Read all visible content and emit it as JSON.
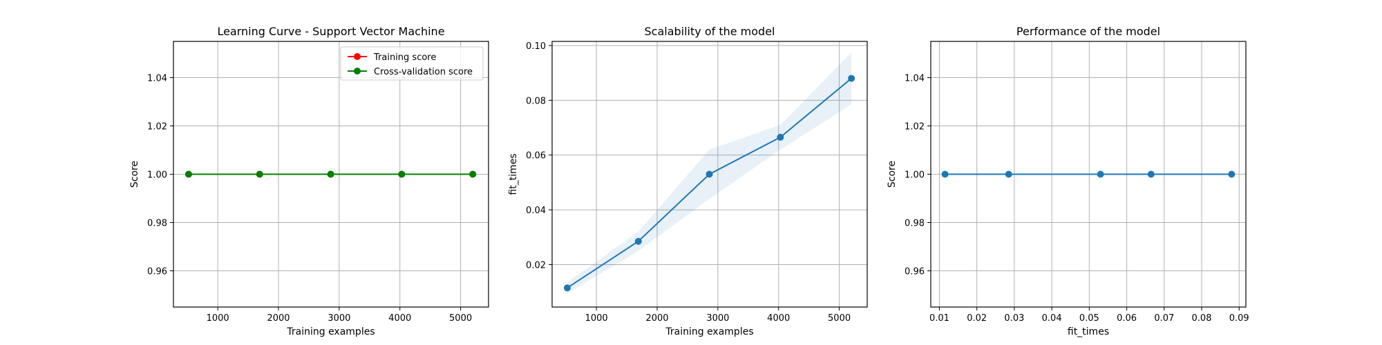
{
  "chart_data": [
    {
      "type": "line",
      "title": "Learning Curve - Support Vector Machine",
      "xlabel": "Training examples",
      "ylabel": "Score",
      "xlim": [
        270,
        5460
      ],
      "ylim": [
        0.945,
        1.055
      ],
      "xticks": [
        1000,
        2000,
        3000,
        4000,
        5000
      ],
      "yticks": [
        0.96,
        0.98,
        1.0,
        1.02,
        1.04
      ],
      "xtick_labels": [
        "1000",
        "2000",
        "3000",
        "4000",
        "5000"
      ],
      "ytick_labels": [
        "0.96",
        "0.98",
        "1.00",
        "1.02",
        "1.04"
      ],
      "grid": true,
      "legend": "top-right",
      "series": [
        {
          "name": "Training score",
          "color": "#ff0000",
          "marker": "circle",
          "x": [
            520,
            1690,
            2860,
            4030,
            5200
          ],
          "y": [
            1.0,
            1.0,
            1.0,
            1.0,
            1.0
          ]
        },
        {
          "name": "Cross-validation score",
          "color": "#008000",
          "marker": "circle",
          "x": [
            520,
            1690,
            2860,
            4030,
            5200
          ],
          "y": [
            1.0,
            1.0,
            1.0,
            1.0,
            1.0
          ]
        }
      ]
    },
    {
      "type": "line",
      "title": "Scalability of the model",
      "xlabel": "Training examples",
      "ylabel": "fit_times",
      "xlim": [
        270,
        5460
      ],
      "ylim": [
        0.0045,
        0.1015
      ],
      "xticks": [
        1000,
        2000,
        3000,
        4000,
        5000
      ],
      "yticks": [
        0.02,
        0.04,
        0.06,
        0.08,
        0.1
      ],
      "xtick_labels": [
        "1000",
        "2000",
        "3000",
        "4000",
        "5000"
      ],
      "ytick_labels": [
        "0.02",
        "0.04",
        "0.06",
        "0.08",
        "0.10"
      ],
      "grid": true,
      "series": [
        {
          "color": "#1f77b4",
          "marker": "circle",
          "x": [
            520,
            1690,
            2860,
            4030,
            5200
          ],
          "y": [
            0.0115,
            0.0285,
            0.053,
            0.0665,
            0.088
          ],
          "band_upper": [
            0.0135,
            0.032,
            0.062,
            0.071,
            0.0975
          ],
          "band_lower": [
            0.0095,
            0.025,
            0.044,
            0.062,
            0.0785
          ]
        }
      ]
    },
    {
      "type": "line",
      "title": "Performance of the model",
      "xlabel": "fit_times",
      "ylabel": "Score",
      "xlim": [
        0.0077,
        0.0918
      ],
      "ylim": [
        0.945,
        1.055
      ],
      "xticks": [
        0.01,
        0.02,
        0.03,
        0.04,
        0.05,
        0.06,
        0.07,
        0.08,
        0.09
      ],
      "yticks": [
        0.96,
        0.98,
        1.0,
        1.02,
        1.04
      ],
      "xtick_labels": [
        "0.01",
        "0.02",
        "0.03",
        "0.04",
        "0.05",
        "0.06",
        "0.07",
        "0.08",
        "0.09"
      ],
      "ytick_labels": [
        "0.96",
        "0.98",
        "1.00",
        "1.02",
        "1.04"
      ],
      "grid": true,
      "series": [
        {
          "color": "#1f77b4",
          "marker": "circle",
          "x": [
            0.0115,
            0.0285,
            0.053,
            0.0665,
            0.088
          ],
          "y": [
            1.0,
            1.0,
            1.0,
            1.0,
            1.0
          ]
        }
      ]
    }
  ]
}
